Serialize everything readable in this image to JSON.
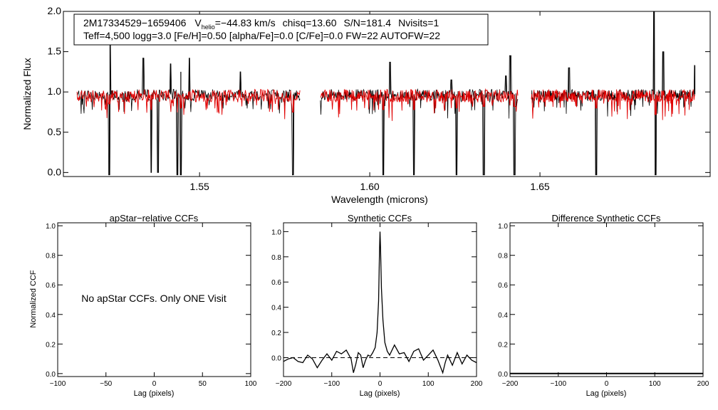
{
  "colors": {
    "background": "#ffffff",
    "axes": "#000000",
    "observed": "#000000",
    "model": "#e00000"
  },
  "header": {
    "line1": {
      "star_id": "2M17334529−1659406",
      "v_label": "V",
      "v_sub": "helio",
      "v_value": "=−44.83 km/s",
      "chisq": "chisq=13.60",
      "snr": "S/N=181.4",
      "nvisits": "Nvisits=1"
    },
    "line2": "Teff=4,500 logg=3.0 [Fe/H]=0.50 [alpha/Fe]=0.0 [C/Fe]=0.0 FW=22 AUTOFW=22"
  },
  "chart_data": [
    {
      "id": "spectrum",
      "type": "line",
      "title": "",
      "xlabel": "Wavelength (microns)",
      "ylabel": "Normalized Flux",
      "xlim": [
        1.51,
        1.7
      ],
      "ylim": [
        -0.05,
        2.0
      ],
      "xticks": [
        1.55,
        1.6,
        1.65
      ],
      "xtick_labels": [
        "1.55",
        "1.60",
        "1.65"
      ],
      "yticks": [
        0.0,
        0.5,
        1.0,
        1.5,
        2.0
      ],
      "ytick_labels": [
        "0.0",
        "0.5",
        "1.0",
        "1.5",
        "2.0"
      ],
      "segments": [
        [
          1.514,
          1.5795
        ],
        [
          1.5855,
          1.6435
        ],
        [
          1.6475,
          1.6955
        ]
      ],
      "series": [
        {
          "name": "observed",
          "continuum": 0.97,
          "spikes": [
            [
              1.5237,
              1.58
            ],
            [
              1.5335,
              1.42
            ],
            [
              1.5415,
              1.35
            ],
            [
              1.5445,
              1.25
            ],
            [
              1.547,
              1.42
            ],
            [
              1.562,
              1.25
            ],
            [
              1.606,
              1.37
            ],
            [
              1.624,
              1.15
            ],
            [
              1.64,
              1.2
            ],
            [
              1.6413,
              1.45
            ],
            [
              1.6585,
              1.3
            ],
            [
              1.6835,
              2.0
            ],
            [
              1.6862,
              1.5
            ],
            [
              1.6955,
              1.33
            ]
          ],
          "dips": [
            [
              1.5235,
              -0.03
            ],
            [
              1.5358,
              0.0
            ],
            [
              1.5378,
              0.0
            ],
            [
              1.5435,
              -0.03
            ],
            [
              1.5445,
              -0.03
            ],
            [
              1.5775,
              -0.03
            ],
            [
              1.604,
              -0.03
            ],
            [
              1.613,
              -0.03
            ],
            [
              1.6255,
              -0.03
            ],
            [
              1.6335,
              -0.03
            ],
            [
              1.6425,
              -0.03
            ],
            [
              1.6665,
              -0.03
            ],
            [
              1.684,
              -0.03
            ]
          ]
        },
        {
          "name": "model",
          "continuum": 0.96,
          "dips": [
            [
              1.5235,
              0.85
            ],
            [
              1.5358,
              0.78
            ],
            [
              1.5445,
              0.8
            ],
            [
              1.5775,
              0.75
            ],
            [
              1.604,
              0.78
            ],
            [
              1.613,
              0.78
            ],
            [
              1.6255,
              0.8
            ],
            [
              1.6335,
              0.82
            ],
            [
              1.6425,
              0.82
            ],
            [
              1.6665,
              0.8
            ],
            [
              1.684,
              0.72
            ]
          ]
        }
      ]
    },
    {
      "id": "apstar",
      "type": "line",
      "title": "apStar−relative CCFs",
      "xlabel": "Lag (pixels)",
      "ylabel": "Normalized CCF",
      "xlim": [
        -100,
        100
      ],
      "ylim": [
        -0.02,
        1.02
      ],
      "xticks": [
        -100,
        -50,
        0,
        50,
        100
      ],
      "xtick_labels": [
        "−100",
        "−50",
        "0",
        "50",
        "100"
      ],
      "yticks": [
        0.0,
        0.2,
        0.4,
        0.6,
        0.8,
        1.0
      ],
      "ytick_labels": [
        "0.0",
        "0.2",
        "0.4",
        "0.6",
        "0.8",
        "1.0"
      ],
      "annotation": "No apStar CCFs.  Only ONE Visit",
      "series": []
    },
    {
      "id": "synthetic",
      "type": "line",
      "title": "Synthetic CCFs",
      "xlabel": "Lag (pixels)",
      "ylabel": "",
      "xlim": [
        -200,
        200
      ],
      "ylim": [
        -0.15,
        1.07
      ],
      "xticks": [
        -200,
        -100,
        0,
        100,
        200
      ],
      "xtick_labels": [
        "−200",
        "−100",
        "0",
        "100",
        "200"
      ],
      "yticks": [
        0.0,
        0.2,
        0.4,
        0.6,
        0.8,
        1.0
      ],
      "ytick_labels": [
        "0.0",
        "0.2",
        "0.4",
        "0.6",
        "0.8",
        "1.0"
      ],
      "reference_line": 0.0,
      "series": [
        {
          "name": "ccf",
          "x": [
            -200,
            -190,
            -180,
            -170,
            -160,
            -150,
            -140,
            -130,
            -120,
            -110,
            -100,
            -90,
            -80,
            -70,
            -60,
            -55,
            -50,
            -45,
            -40,
            -35,
            -30,
            -25,
            -20,
            -15,
            -10,
            -6,
            -3,
            -1,
            0,
            1,
            3,
            6,
            10,
            15,
            20,
            25,
            30,
            40,
            50,
            60,
            70,
            80,
            90,
            100,
            110,
            120,
            130,
            135,
            140,
            150,
            160,
            170,
            180,
            190,
            200
          ],
          "y": [
            -0.03,
            -0.01,
            0.0,
            -0.03,
            -0.04,
            0.02,
            -0.01,
            -0.08,
            -0.02,
            0.03,
            -0.02,
            0.05,
            0.03,
            0.06,
            -0.01,
            -0.12,
            -0.05,
            0.04,
            0.02,
            -0.08,
            -0.02,
            0.02,
            0.01,
            0.04,
            0.08,
            0.2,
            0.45,
            0.85,
            1.0,
            0.88,
            0.55,
            0.3,
            0.12,
            0.05,
            0.02,
            0.06,
            0.1,
            0.03,
            0.04,
            -0.03,
            0.05,
            0.07,
            -0.02,
            0.02,
            0.06,
            -0.02,
            -0.12,
            -0.04,
            0.02,
            -0.06,
            0.04,
            -0.05,
            0.02,
            -0.02,
            -0.04
          ]
        }
      ]
    },
    {
      "id": "difference",
      "type": "line",
      "title": "Difference Synthetic CCFs",
      "xlabel": "Lag (pixels)",
      "ylabel": "",
      "xlim": [
        -200,
        200
      ],
      "ylim": [
        -0.02,
        1.02
      ],
      "xticks": [
        -200,
        -100,
        0,
        100,
        200
      ],
      "xtick_labels": [
        "−200",
        "−100",
        "0",
        "100",
        "200"
      ],
      "yticks": [
        0.0,
        0.2,
        0.4,
        0.6,
        0.8,
        1.0
      ],
      "ytick_labels": [
        "0.0",
        "0.2",
        "0.4",
        "0.6",
        "0.8",
        "1.0"
      ],
      "series": [
        {
          "name": "difference",
          "x": [
            -200,
            200
          ],
          "y": [
            0.0,
            0.0
          ]
        }
      ]
    }
  ]
}
